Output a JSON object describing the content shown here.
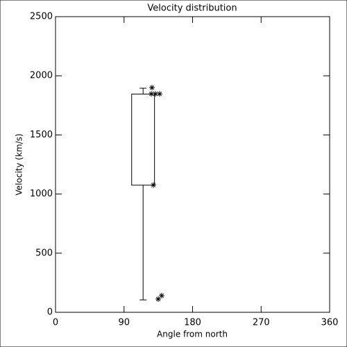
{
  "chart_data": {
    "type": "box",
    "title": "Velocity distribution",
    "x_label": "Angle from north",
    "y_label": "Velocity (km/s)",
    "xlim": [
      0,
      360
    ],
    "xticks": [
      0,
      90,
      180,
      270,
      360
    ],
    "ylim": [
      0,
      2500
    ],
    "yticks": [
      0,
      500,
      1000,
      1500,
      2000,
      2500
    ],
    "boxes": [
      {
        "position": 115,
        "x_range": [
          100,
          130
        ],
        "q1": 1075,
        "q3": 1845,
        "whisker_low": 105,
        "whisker_high": 1895
      }
    ],
    "points": {
      "x": [
        126.7,
        125.8,
        131.2,
        136.7,
        128.5,
        134.9,
        139.4
      ],
      "y": [
        1900,
        1847,
        1847,
        1847,
        1076,
        112,
        141
      ]
    },
    "color": "#000000"
  }
}
